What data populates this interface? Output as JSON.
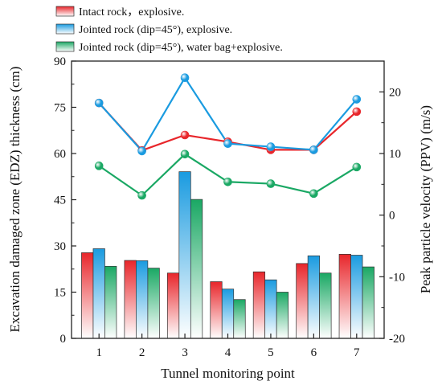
{
  "chart_data": {
    "type": "bar",
    "title": "",
    "xlabel": "Tunnel monitoring point",
    "ylabel": "Excavation damaged zone (EDZ) thickness (cm)",
    "y2label": "Peak particle velocity (PPV) (m/s)",
    "categories": [
      "1",
      "2",
      "3",
      "4",
      "5",
      "6",
      "7"
    ],
    "ylim": [
      0,
      90
    ],
    "yticks": [
      "0",
      "15",
      "30",
      "45",
      "60",
      "75",
      "90"
    ],
    "y2lim": [
      -20,
      25
    ],
    "y2ticks": [
      "-20",
      "-10",
      "0",
      "10",
      "20"
    ],
    "series": [
      {
        "name": "Intact rock，explosive.",
        "color": "#e8262b",
        "bar_values": [
          27.8,
          25.3,
          21.2,
          18.4,
          21.6,
          24.3,
          27.3
        ],
        "line_values": [
          18.2,
          10.5,
          13.0,
          11.9,
          10.6,
          10.6,
          16.8
        ]
      },
      {
        "name": "Jointed rock (dip=45°), explosive.",
        "color": "#1a9be0",
        "bar_values": [
          29.1,
          25.2,
          54.1,
          16.0,
          19.0,
          26.8,
          27.0
        ],
        "line_values": [
          18.2,
          10.4,
          22.3,
          11.6,
          11.1,
          10.6,
          18.8
        ]
      },
      {
        "name": "Jointed rock (dip=45°), water bag+explosive.",
        "color": "#1aa864",
        "bar_values": [
          23.4,
          22.8,
          45.1,
          12.6,
          15.0,
          21.2,
          23.2
        ],
        "line_values": [
          8.0,
          3.2,
          9.9,
          5.4,
          5.1,
          3.5,
          7.8
        ]
      }
    ],
    "legend_position": "top-left",
    "grid": false
  }
}
